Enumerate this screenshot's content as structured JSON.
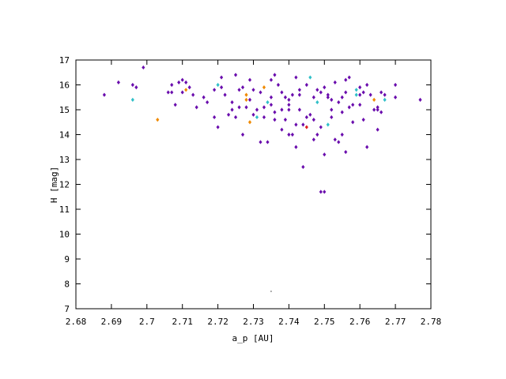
{
  "chart_data": {
    "type": "scatter",
    "xlabel": "a_p [AU]",
    "ylabel": "H [mag]",
    "xlim": [
      2.68,
      2.78
    ],
    "ylim": [
      7,
      17
    ],
    "x_ticks": [
      "2.68",
      "2.69",
      "2.7",
      "2.71",
      "2.72",
      "2.73",
      "2.74",
      "2.75",
      "2.76",
      "2.77",
      "2.78"
    ],
    "y_ticks": [
      "7",
      "8",
      "9",
      "10",
      "11",
      "12",
      "13",
      "14",
      "15",
      "16",
      "17"
    ],
    "grid": false,
    "legend": "none",
    "colors": {
      "purple": "#6a0dad",
      "orange": "#f08a00",
      "cyan": "#30c0c8",
      "red": "#e02020",
      "dark": "#333333"
    },
    "points": [
      [
        2.688,
        15.6,
        "purple"
      ],
      [
        2.692,
        16.1,
        "purple"
      ],
      [
        2.696,
        16.0,
        "purple"
      ],
      [
        2.697,
        15.9,
        "purple"
      ],
      [
        2.696,
        15.4,
        "cyan"
      ],
      [
        2.699,
        16.7,
        "purple"
      ],
      [
        2.703,
        14.6,
        "orange"
      ],
      [
        2.706,
        15.7,
        "purple"
      ],
      [
        2.707,
        15.7,
        "purple"
      ],
      [
        2.707,
        16.0,
        "purple"
      ],
      [
        2.708,
        15.2,
        "purple"
      ],
      [
        2.709,
        16.1,
        "purple"
      ],
      [
        2.71,
        16.2,
        "purple"
      ],
      [
        2.711,
        16.1,
        "purple"
      ],
      [
        2.711,
        15.8,
        "orange"
      ],
      [
        2.71,
        15.7,
        "purple"
      ],
      [
        2.712,
        15.9,
        "purple"
      ],
      [
        2.713,
        15.6,
        "purple"
      ],
      [
        2.714,
        15.1,
        "purple"
      ],
      [
        2.716,
        15.5,
        "purple"
      ],
      [
        2.717,
        15.3,
        "purple"
      ],
      [
        2.719,
        15.8,
        "purple"
      ],
      [
        2.719,
        14.7,
        "purple"
      ],
      [
        2.72,
        14.3,
        "purple"
      ],
      [
        2.72,
        16.0,
        "cyan"
      ],
      [
        2.721,
        16.3,
        "purple"
      ],
      [
        2.721,
        15.9,
        "purple"
      ],
      [
        2.722,
        15.6,
        "purple"
      ],
      [
        2.723,
        14.8,
        "purple"
      ],
      [
        2.724,
        15.3,
        "purple"
      ],
      [
        2.725,
        14.7,
        "purple"
      ],
      [
        2.725,
        16.4,
        "purple"
      ],
      [
        2.726,
        15.1,
        "purple"
      ],
      [
        2.727,
        14.0,
        "purple"
      ],
      [
        2.727,
        15.9,
        "purple"
      ],
      [
        2.728,
        15.6,
        "orange"
      ],
      [
        2.728,
        15.4,
        "orange"
      ],
      [
        2.728,
        15.1,
        "purple"
      ],
      [
        2.729,
        16.2,
        "purple"
      ],
      [
        2.729,
        14.5,
        "orange"
      ],
      [
        2.73,
        14.8,
        "purple"
      ],
      [
        2.73,
        15.8,
        "purple"
      ],
      [
        2.731,
        15.0,
        "purple"
      ],
      [
        2.731,
        14.7,
        "cyan"
      ],
      [
        2.732,
        15.7,
        "purple"
      ],
      [
        2.733,
        15.9,
        "orange"
      ],
      [
        2.733,
        15.1,
        "purple"
      ],
      [
        2.734,
        15.3,
        "cyan"
      ],
      [
        2.734,
        13.7,
        "purple"
      ],
      [
        2.735,
        15.5,
        "purple"
      ],
      [
        2.735,
        15.2,
        "purple"
      ],
      [
        2.736,
        16.4,
        "purple"
      ],
      [
        2.736,
        14.9,
        "purple"
      ],
      [
        2.737,
        16.0,
        "purple"
      ],
      [
        2.738,
        15.7,
        "purple"
      ],
      [
        2.738,
        14.2,
        "purple"
      ],
      [
        2.739,
        15.5,
        "purple"
      ],
      [
        2.739,
        14.6,
        "purple"
      ],
      [
        2.74,
        15.0,
        "purple"
      ],
      [
        2.74,
        14.0,
        "purple"
      ],
      [
        2.74,
        15.4,
        "purple"
      ],
      [
        2.741,
        15.6,
        "purple"
      ],
      [
        2.742,
        16.3,
        "purple"
      ],
      [
        2.742,
        13.5,
        "purple"
      ],
      [
        2.743,
        15.0,
        "purple"
      ],
      [
        2.743,
        15.8,
        "purple"
      ],
      [
        2.744,
        14.4,
        "purple"
      ],
      [
        2.744,
        12.7,
        "purple"
      ],
      [
        2.745,
        14.7,
        "purple"
      ],
      [
        2.745,
        14.3,
        "red"
      ],
      [
        2.746,
        14.8,
        "purple"
      ],
      [
        2.746,
        16.3,
        "cyan"
      ],
      [
        2.747,
        15.5,
        "purple"
      ],
      [
        2.747,
        13.8,
        "purple"
      ],
      [
        2.748,
        14.0,
        "purple"
      ],
      [
        2.748,
        15.3,
        "cyan"
      ],
      [
        2.749,
        15.7,
        "purple"
      ],
      [
        2.749,
        14.3,
        "purple"
      ],
      [
        2.75,
        13.2,
        "purple"
      ],
      [
        2.75,
        15.9,
        "purple"
      ],
      [
        2.751,
        15.6,
        "purple"
      ],
      [
        2.751,
        14.4,
        "cyan"
      ],
      [
        2.752,
        15.0,
        "purple"
      ],
      [
        2.752,
        15.4,
        "purple"
      ],
      [
        2.753,
        13.8,
        "purple"
      ],
      [
        2.753,
        16.1,
        "purple"
      ],
      [
        2.754,
        15.3,
        "purple"
      ],
      [
        2.755,
        14.9,
        "purple"
      ],
      [
        2.755,
        15.5,
        "purple"
      ],
      [
        2.756,
        15.7,
        "purple"
      ],
      [
        2.756,
        13.3,
        "purple"
      ],
      [
        2.757,
        15.1,
        "purple"
      ],
      [
        2.757,
        16.3,
        "purple"
      ],
      [
        2.758,
        14.5,
        "purple"
      ],
      [
        2.759,
        15.6,
        "cyan"
      ],
      [
        2.76,
        15.9,
        "purple"
      ],
      [
        2.76,
        15.2,
        "purple"
      ],
      [
        2.761,
        14.6,
        "purple"
      ],
      [
        2.761,
        15.7,
        "purple"
      ],
      [
        2.762,
        13.5,
        "purple"
      ],
      [
        2.762,
        16.0,
        "purple"
      ],
      [
        2.763,
        15.6,
        "purple"
      ],
      [
        2.764,
        15.0,
        "purple"
      ],
      [
        2.764,
        15.4,
        "orange"
      ],
      [
        2.765,
        15.1,
        "purple"
      ],
      [
        2.765,
        14.2,
        "purple"
      ],
      [
        2.766,
        15.7,
        "purple"
      ],
      [
        2.766,
        14.9,
        "purple"
      ],
      [
        2.767,
        15.4,
        "cyan"
      ],
      [
        2.749,
        11.7,
        "purple"
      ],
      [
        2.75,
        11.7,
        "purple"
      ],
      [
        2.755,
        14.0,
        "purple"
      ],
      [
        2.756,
        16.2,
        "purple"
      ],
      [
        2.76,
        15.6,
        "purple"
      ],
      [
        2.767,
        15.6,
        "purple"
      ],
      [
        2.77,
        15.5,
        "purple"
      ],
      [
        2.77,
        16.0,
        "purple"
      ],
      [
        2.765,
        15.0,
        "purple"
      ],
      [
        2.759,
        15.8,
        "cyan"
      ],
      [
        2.777,
        15.4,
        "purple"
      ],
      [
        2.724,
        15.0,
        "purple"
      ],
      [
        2.726,
        15.8,
        "purple"
      ],
      [
        2.733,
        14.7,
        "purple"
      ],
      [
        2.736,
        14.6,
        "purple"
      ],
      [
        2.738,
        15.0,
        "purple"
      ],
      [
        2.741,
        14.0,
        "purple"
      ],
      [
        2.743,
        15.6,
        "purple"
      ],
      [
        2.747,
        14.6,
        "purple"
      ],
      [
        2.752,
        14.7,
        "purple"
      ],
      [
        2.754,
        13.7,
        "purple"
      ],
      [
        2.758,
        15.2,
        "purple"
      ],
      [
        2.74,
        15.2,
        "purple"
      ],
      [
        2.742,
        14.4,
        "purple"
      ],
      [
        2.735,
        16.2,
        "purple"
      ],
      [
        2.732,
        13.7,
        "purple"
      ],
      [
        2.729,
        15.4,
        "purple"
      ],
      [
        2.745,
        16.0,
        "purple"
      ],
      [
        2.748,
        15.8,
        "purple"
      ],
      [
        2.751,
        15.5,
        "purple"
      ],
      [
        2.735,
        7.7,
        "dark"
      ],
      [
        2.68,
        7.1,
        "dark"
      ]
    ]
  }
}
